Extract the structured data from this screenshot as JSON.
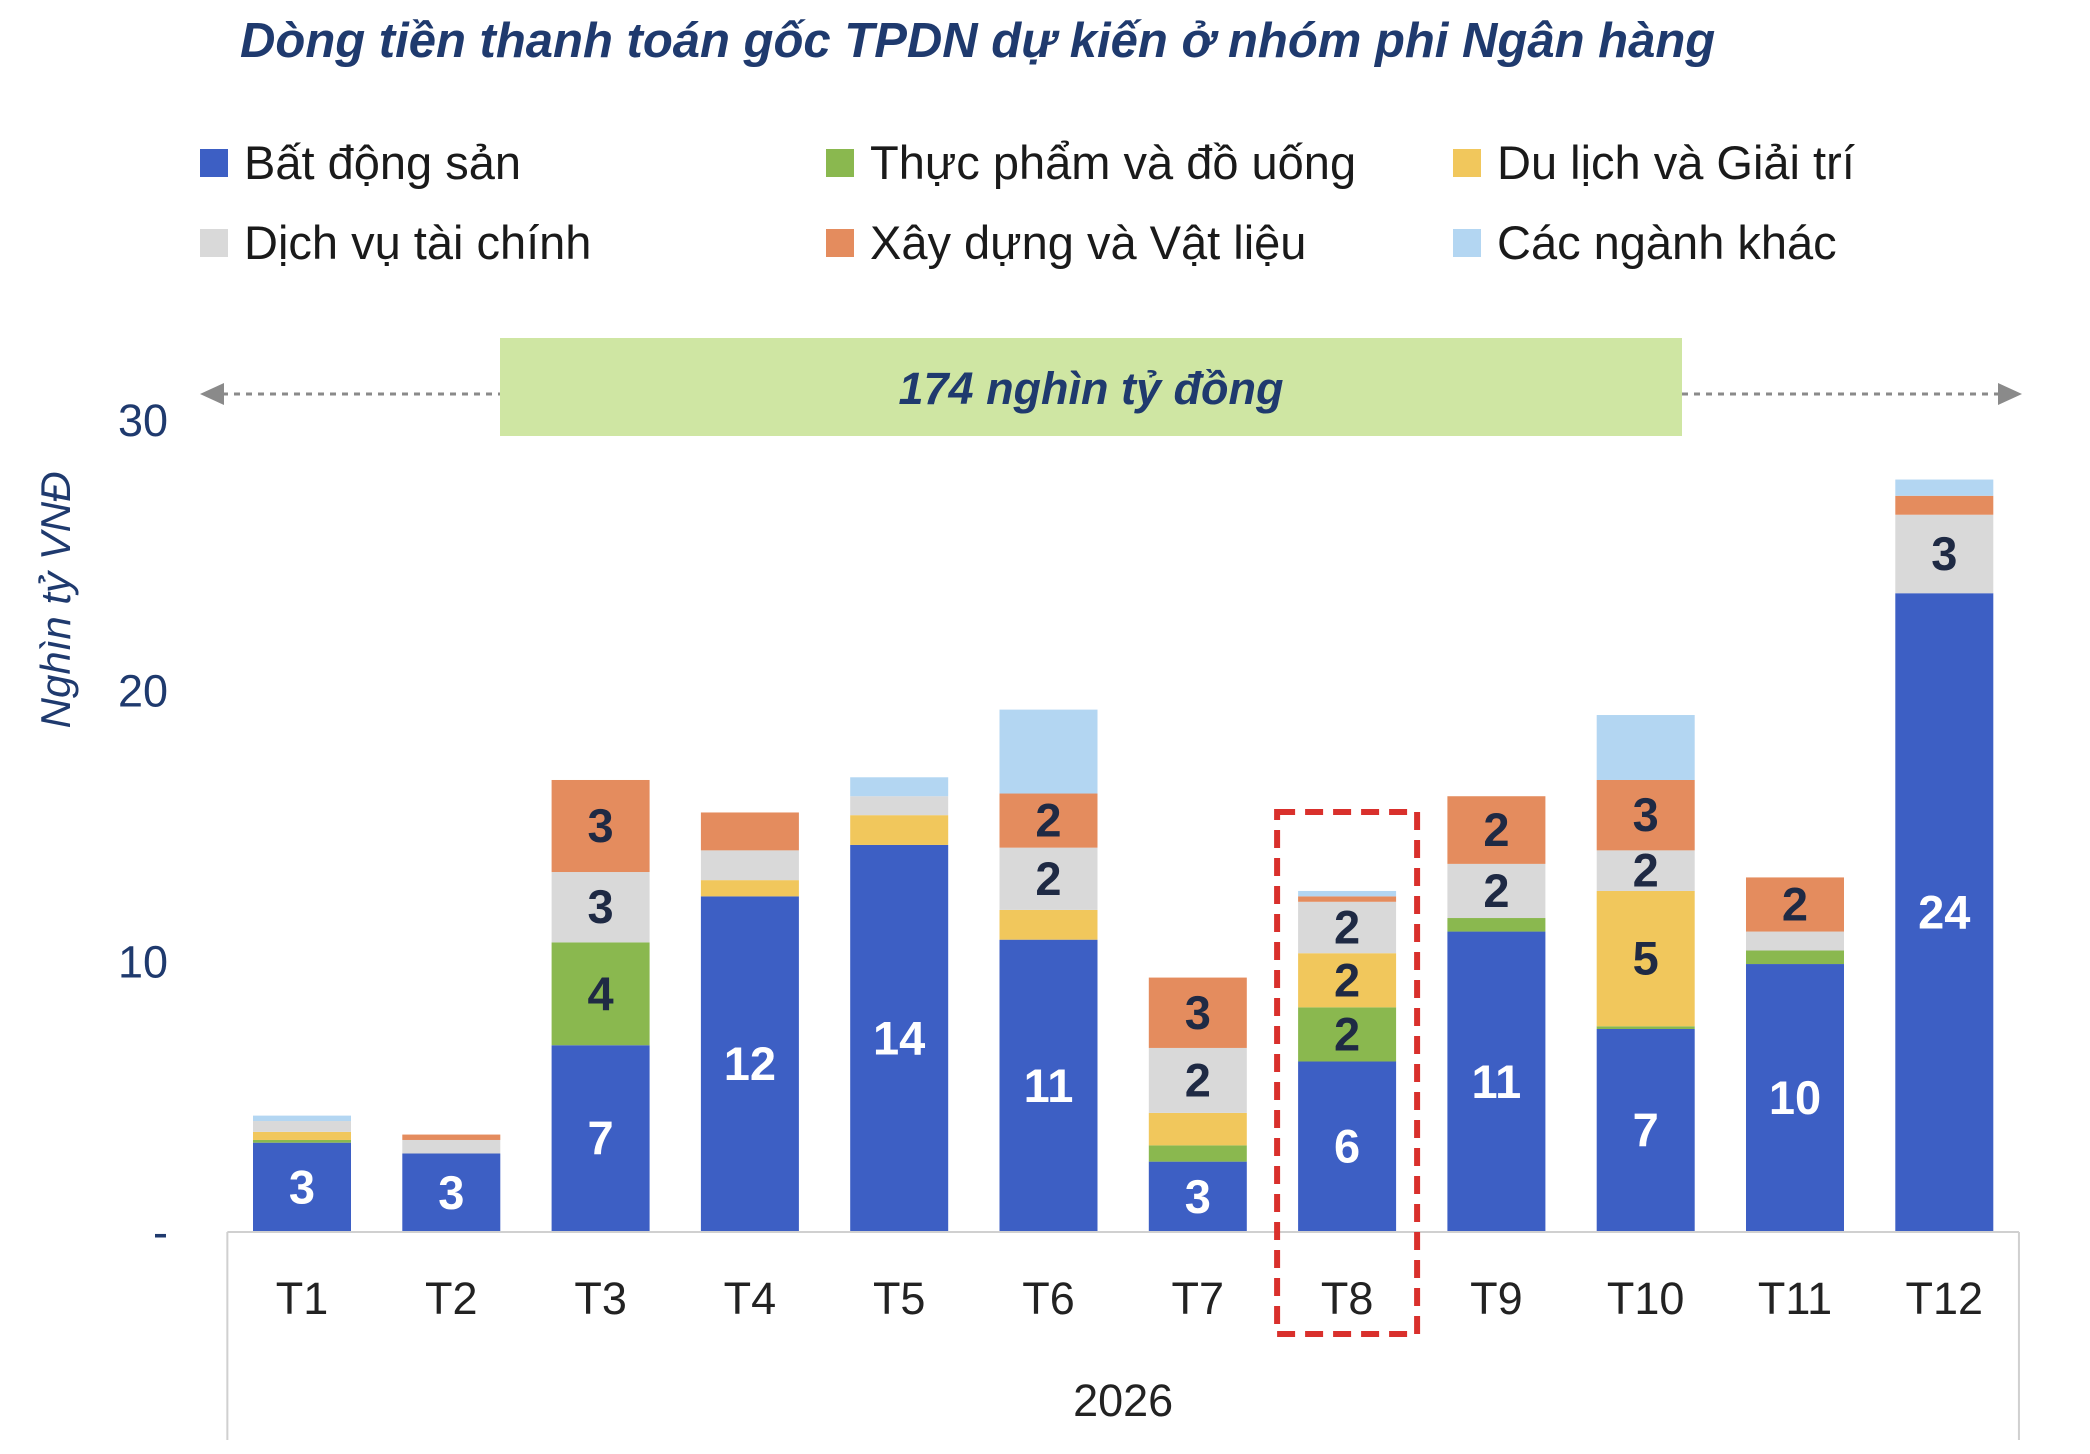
{
  "chart_data": {
    "type": "bar",
    "stacked": true,
    "title": "Dòng tiền thanh toán gốc TPDN dự kiến ở nhóm phi Ngân hàng",
    "ylabel": "Nghìn tỷ VNĐ",
    "ylim": [
      0,
      30
    ],
    "yticks": [
      {
        "value": 0,
        "label": "-"
      },
      {
        "value": 10,
        "label": "10"
      },
      {
        "value": 20,
        "label": "20"
      },
      {
        "value": 30,
        "label": "30"
      }
    ],
    "categories": [
      "T1",
      "T2",
      "T3",
      "T4",
      "T5",
      "T6",
      "T7",
      "T8",
      "T9",
      "T10",
      "T11",
      "T12"
    ],
    "x_group_label": "2026",
    "legend_position": "top",
    "grid": false,
    "banner": "174 nghìn tỷ đồng",
    "highlight_category": "T8",
    "series": [
      {
        "name": "Bất động sản",
        "color": "#3d5fc4",
        "values": [
          3.3,
          2.9,
          6.9,
          12.4,
          14.3,
          10.8,
          2.6,
          6.3,
          11.1,
          7.5,
          9.9,
          23.6
        ],
        "labels": [
          "3",
          "3",
          "7",
          "12",
          "14",
          "11",
          "3",
          "6",
          "11",
          "7",
          "10",
          "24"
        ]
      },
      {
        "name": "Thực phẩm và đồ uống",
        "color": "#8ab84f",
        "values": [
          0.1,
          0.0,
          3.8,
          0.0,
          0.0,
          0.0,
          0.6,
          2.0,
          0.5,
          0.1,
          0.5,
          0.0
        ],
        "labels": [
          "",
          "",
          "4",
          "",
          "",
          "",
          "",
          "2",
          "",
          "",
          "",
          ""
        ]
      },
      {
        "name": "Du lịch và Giải trí",
        "color": "#f1c75c",
        "values": [
          0.3,
          0.0,
          0.0,
          0.6,
          1.1,
          1.1,
          1.2,
          2.0,
          0.0,
          5.0,
          0.0,
          0.0
        ],
        "labels": [
          "",
          "",
          "",
          "",
          "",
          "",
          "",
          "2",
          "",
          "5",
          "",
          ""
        ]
      },
      {
        "name": "Dịch vụ tài chính",
        "color": "#d9d9d9",
        "values": [
          0.4,
          0.5,
          2.6,
          1.1,
          0.7,
          2.3,
          2.4,
          1.9,
          2.0,
          1.5,
          0.7,
          2.9
        ],
        "labels": [
          "",
          "",
          "3",
          "",
          "",
          "2",
          "2",
          "2",
          "2",
          "2",
          "",
          "3"
        ]
      },
      {
        "name": "Xây dựng và Vật liệu",
        "color": "#e48c5e",
        "values": [
          0.0,
          0.2,
          3.4,
          1.4,
          0.0,
          2.0,
          2.6,
          0.2,
          2.5,
          2.6,
          2.0,
          0.7
        ],
        "labels": [
          "",
          "",
          "3",
          "",
          "",
          "2",
          "3",
          "",
          "2",
          "3",
          "2",
          ""
        ]
      },
      {
        "name": "Các ngành khác",
        "color": "#b3d6f2",
        "values": [
          0.2,
          0.0,
          0.0,
          0.0,
          0.7,
          3.1,
          0.0,
          0.2,
          0.0,
          2.4,
          0.0,
          0.6
        ],
        "labels": [
          "",
          "",
          "",
          "",
          "",
          "",
          "",
          "",
          "",
          "",
          "",
          ""
        ]
      }
    ]
  },
  "colors": {
    "title": "#1f3a6e",
    "banner_fill": "#cfe6a3",
    "banner_text": "#1f3a6e",
    "label_light": "#ffffff",
    "label_dark": "#1f2a44",
    "highlight_border": "#d9302c",
    "axis": "#222222"
  }
}
